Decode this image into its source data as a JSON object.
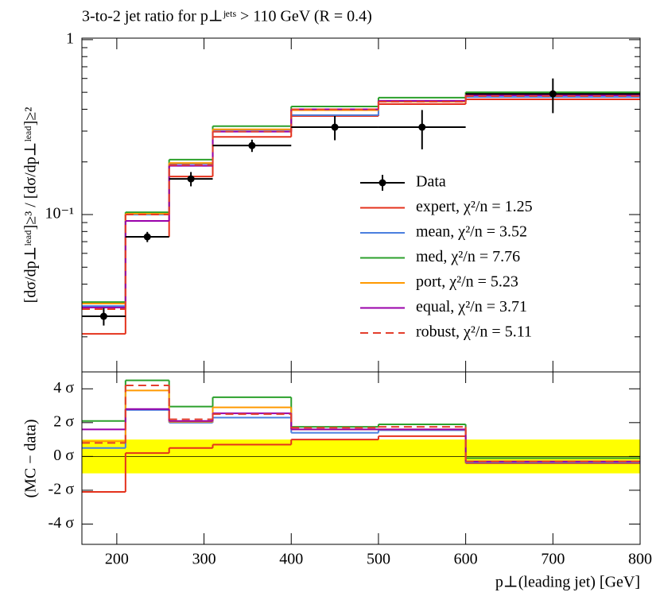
{
  "chart_data": [
    {
      "type": "histogram",
      "title": "3-to-2 jet ratio for p⊥ʲᵉᵗˢ > 110 GeV (R = 0.4)",
      "y_label": "[dσ/dp⊥ˡᵉᵃᵈ]≥³ / [dσ/dp⊥ˡᵉᵃᵈ]≥²",
      "log_y": true,
      "bins": [
        160,
        210,
        260,
        310,
        400,
        500,
        600,
        800
      ],
      "xlim": [
        160,
        800
      ],
      "xticks": [
        200,
        300,
        400,
        500,
        600,
        700,
        800
      ],
      "ylim": [
        0.0126,
        1.02
      ],
      "yticks": [
        1,
        {
          "value": 0.1,
          "label": "10⁻¹"
        }
      ],
      "yminor": [
        0.02,
        0.03,
        0.04,
        0.05,
        0.06,
        0.07,
        0.08,
        0.09,
        0.2,
        0.3,
        0.4,
        0.5,
        0.6,
        0.7,
        0.8,
        0.9
      ],
      "legend": "center right",
      "data": {
        "name": "Data",
        "color": "#000000",
        "values": [
          0.0262,
          0.0746,
          0.16,
          0.248,
          0.316,
          0.316,
          0.49
        ],
        "errors": [
          0.003,
          0.005,
          0.015,
          0.02,
          0.05,
          0.08,
          0.11
        ]
      },
      "series": [
        {
          "name": "expert, χ²/n = 1.25",
          "color": "#e4321c",
          "dash": false,
          "values": [
            0.0208,
            0.0746,
            0.165,
            0.278,
            0.366,
            0.428,
            0.456
          ]
        },
        {
          "name": "mean, χ²/n = 3.52",
          "color": "#4a7fdf",
          "dash": false,
          "values": [
            0.03,
            0.1,
            0.195,
            0.305,
            0.37,
            0.442,
            0.47
          ]
        },
        {
          "name": "med, χ²/n = 7.76",
          "color": "#2ca02c",
          "dash": false,
          "values": [
            0.0316,
            0.103,
            0.206,
            0.32,
            0.415,
            0.466,
            0.5
          ]
        },
        {
          "name": "port, χ²/n = 5.23",
          "color": "#ff9900",
          "dash": false,
          "values": [
            0.031,
            0.101,
            0.197,
            0.307,
            0.395,
            0.442,
            0.485
          ]
        },
        {
          "name": "equal, χ²/n = 3.71",
          "color": "#9900aa",
          "dash": false,
          "values": [
            0.0294,
            0.092,
            0.19,
            0.298,
            0.4,
            0.447,
            0.48
          ]
        },
        {
          "name": "robust, χ²/n = 5.11",
          "color": "#e43e2c",
          "dash": true,
          "values": [
            0.0288,
            0.1,
            0.192,
            0.298,
            0.4,
            0.442,
            0.476
          ]
        }
      ]
    },
    {
      "type": "histogram",
      "y_label": "(MC − data)",
      "x_label": "p⊥(leading jet) [GeV]",
      "log_y": false,
      "bins": [
        160,
        210,
        260,
        310,
        400,
        500,
        600,
        800
      ],
      "xlim": [
        160,
        800
      ],
      "xticks": [
        200,
        300,
        400,
        500,
        600,
        700,
        800
      ],
      "ylim": [
        -5.2,
        5.0
      ],
      "yticks": [
        {
          "value": 4,
          "label": "4 σ"
        },
        {
          "value": 2,
          "label": "2 σ"
        },
        {
          "value": 0,
          "label": "0 σ"
        },
        {
          "value": -2,
          "label": "-2 σ"
        },
        {
          "value": -4,
          "label": "-4 σ"
        }
      ],
      "band": [
        -1,
        1
      ],
      "band_color": "#ffff00",
      "series": [
        {
          "color": "#e4321c",
          "dash": false,
          "values": [
            -2.1,
            0.2,
            0.5,
            0.7,
            1.0,
            1.2,
            -0.4
          ]
        },
        {
          "color": "#4a7fdf",
          "dash": false,
          "values": [
            0.5,
            2.75,
            2.0,
            2.3,
            1.4,
            1.55,
            -0.35
          ]
        },
        {
          "color": "#2ca02c",
          "dash": false,
          "values": [
            2.1,
            4.5,
            2.95,
            3.5,
            1.75,
            1.9,
            -0.1
          ]
        },
        {
          "color": "#ff9900",
          "dash": false,
          "values": [
            0.9,
            3.9,
            2.05,
            2.9,
            1.6,
            1.6,
            -0.3
          ]
        },
        {
          "color": "#9900aa",
          "dash": false,
          "values": [
            1.6,
            2.8,
            2.1,
            2.55,
            1.6,
            1.6,
            -0.3
          ]
        },
        {
          "color": "#e43e2c",
          "dash": true,
          "values": [
            0.8,
            4.2,
            2.2,
            2.5,
            1.7,
            1.75,
            -0.3
          ]
        }
      ]
    }
  ]
}
